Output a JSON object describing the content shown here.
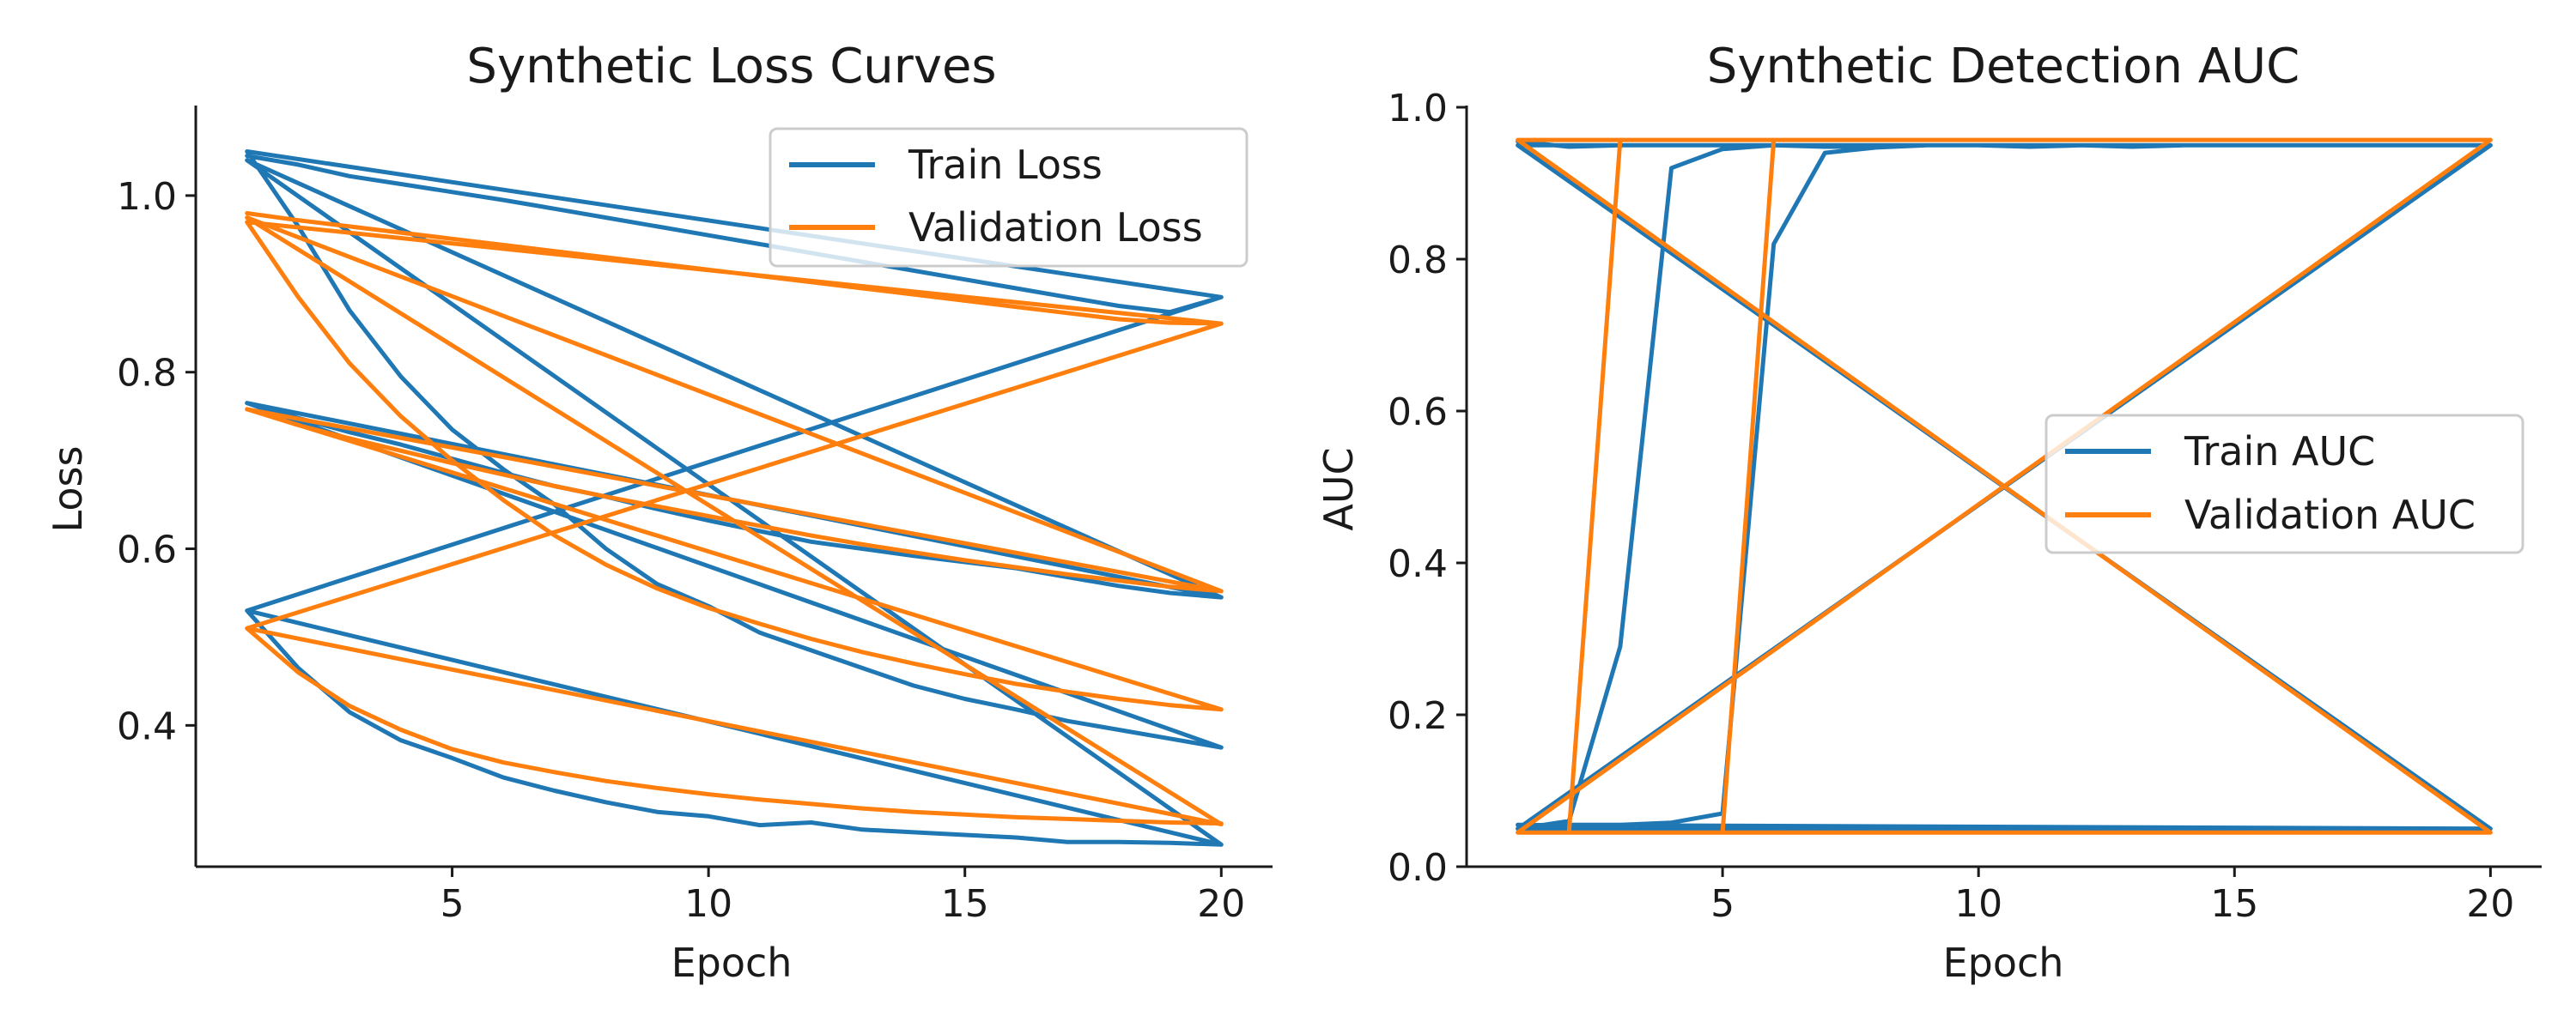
{
  "colors": {
    "train": "#1f77b4",
    "validation": "#ff7f0e",
    "axis": "#1a1a1a"
  },
  "chart_data": [
    {
      "type": "line",
      "title": "Synthetic Loss Curves",
      "xlabel": "Epoch",
      "ylabel": "Loss",
      "xlim": [
        0,
        21
      ],
      "ylim": [
        0.24,
        1.1
      ],
      "xticks": [
        5,
        10,
        15,
        20
      ],
      "yticks": [
        0.4,
        0.6,
        0.8,
        1.0
      ],
      "ytick_labels": [
        "0.4",
        "0.6",
        "0.8",
        "1.0"
      ],
      "grid": false,
      "legend_position": "top-right",
      "legend": [
        "Train Loss",
        "Validation Loss"
      ],
      "series": [
        {
          "name": "Train Loss",
          "color": "#1f77b4",
          "x": [
            1,
            2,
            3,
            4,
            5,
            6,
            7,
            8,
            9,
            10,
            11,
            12,
            13,
            14,
            15,
            16,
            17,
            18,
            19,
            20,
            1,
            20,
            1,
            2,
            3,
            4,
            5,
            6,
            7,
            8,
            9,
            10,
            11,
            12,
            13,
            14,
            15,
            16,
            17,
            18,
            19,
            20,
            1,
            20,
            1,
            2,
            3,
            4,
            5,
            6,
            7,
            8,
            9,
            10,
            11,
            12,
            13,
            14,
            15,
            16,
            17,
            18,
            19,
            20,
            1,
            20,
            1,
            2,
            3,
            4,
            5,
            6,
            7,
            8,
            9,
            10,
            11,
            12,
            13,
            14,
            15,
            16,
            17,
            18,
            19,
            20
          ],
          "y": [
            1.045,
            1.035,
            1.022,
            1.013,
            1.004,
            0.995,
            0.985,
            0.975,
            0.965,
            0.955,
            0.945,
            0.935,
            0.925,
            0.915,
            0.905,
            0.895,
            0.885,
            0.875,
            0.868,
            0.885,
            0.53,
            0.885,
            1.05,
            0.965,
            0.87,
            0.795,
            0.735,
            0.69,
            0.65,
            0.6,
            0.56,
            0.535,
            0.505,
            0.485,
            0.465,
            0.445,
            0.43,
            0.418,
            0.405,
            0.395,
            0.385,
            0.375,
            0.765,
            0.545,
            0.765,
            0.748,
            0.732,
            0.718,
            0.702,
            0.686,
            0.671,
            0.659,
            0.645,
            0.632,
            0.62,
            0.608,
            0.6,
            0.592,
            0.585,
            0.578,
            0.568,
            0.558,
            0.55,
            0.545,
            1.04,
            0.265,
            0.53,
            0.465,
            0.415,
            0.383,
            0.363,
            0.341,
            0.326,
            0.313,
            0.302,
            0.297,
            0.287,
            0.29,
            0.282,
            0.279,
            0.276,
            0.273,
            0.268,
            0.268,
            0.267,
            0.265
          ]
        },
        {
          "name": "Validation Loss",
          "color": "#ff7f0e",
          "x": [
            1,
            2,
            3,
            4,
            5,
            6,
            7,
            8,
            9,
            10,
            11,
            12,
            13,
            14,
            15,
            16,
            17,
            18,
            19,
            20,
            1,
            20,
            1,
            2,
            3,
            4,
            5,
            6,
            7,
            8,
            9,
            10,
            11,
            12,
            13,
            14,
            15,
            16,
            17,
            18,
            19,
            20,
            1,
            20,
            1,
            2,
            3,
            4,
            5,
            6,
            7,
            8,
            9,
            10,
            11,
            12,
            13,
            14,
            15,
            16,
            17,
            18,
            19,
            20,
            1,
            20,
            1,
            2,
            3,
            4,
            5,
            6,
            7,
            8,
            9,
            10,
            11,
            12,
            13,
            14,
            15,
            16,
            17,
            18,
            19,
            20
          ],
          "y": [
            0.98,
            0.972,
            0.965,
            0.958,
            0.951,
            0.944,
            0.937,
            0.93,
            0.923,
            0.916,
            0.909,
            0.902,
            0.895,
            0.888,
            0.881,
            0.874,
            0.867,
            0.86,
            0.856,
            0.855,
            0.51,
            0.855,
            0.97,
            0.885,
            0.81,
            0.75,
            0.7,
            0.655,
            0.615,
            0.582,
            0.555,
            0.533,
            0.515,
            0.498,
            0.483,
            0.47,
            0.458,
            0.447,
            0.438,
            0.43,
            0.423,
            0.418,
            0.758,
            0.552,
            0.758,
            0.74,
            0.725,
            0.711,
            0.697,
            0.684,
            0.671,
            0.659,
            0.648,
            0.637,
            0.626,
            0.615,
            0.605,
            0.596,
            0.587,
            0.579,
            0.571,
            0.564,
            0.557,
            0.552,
            0.975,
            0.288,
            0.51,
            0.46,
            0.422,
            0.395,
            0.373,
            0.358,
            0.347,
            0.337,
            0.329,
            0.322,
            0.316,
            0.311,
            0.306,
            0.302,
            0.299,
            0.296,
            0.294,
            0.292,
            0.29,
            0.289
          ]
        }
      ]
    },
    {
      "type": "line",
      "title": "Synthetic Detection AUC",
      "xlabel": "Epoch",
      "ylabel": "AUC",
      "xlim": [
        0,
        21
      ],
      "ylim": [
        0,
        1.0
      ],
      "xticks": [
        5,
        10,
        15,
        20
      ],
      "yticks": [
        0.0,
        0.2,
        0.4,
        0.6,
        0.8,
        1.0
      ],
      "ytick_labels": [
        "0.0",
        "0.2",
        "0.4",
        "0.6",
        "0.8",
        "1.0"
      ],
      "grid": false,
      "legend_position": "center-right",
      "legend": [
        "Train AUC",
        "Validation AUC"
      ],
      "series": [
        {
          "name": "Train AUC",
          "color": "#1f77b4",
          "x": [
            1,
            2,
            3,
            4,
            5,
            6,
            7,
            8,
            9,
            10,
            11,
            12,
            13,
            14,
            15,
            16,
            17,
            18,
            19,
            20,
            1,
            20,
            1,
            2,
            3,
            4,
            5,
            6,
            7,
            8,
            9,
            10,
            11,
            12,
            13,
            14,
            15,
            16,
            17,
            18,
            19,
            20,
            1,
            20,
            1,
            2,
            3,
            4,
            5,
            6,
            7,
            8,
            9,
            10,
            11,
            12,
            13,
            14,
            15,
            16,
            17,
            18,
            19,
            20,
            1,
            20,
            1,
            2,
            3,
            4,
            5,
            6,
            7,
            8,
            9,
            10,
            11,
            12,
            13,
            14,
            15,
            16,
            17,
            18,
            19,
            20
          ],
          "y": [
            0.955,
            0.948,
            0.95,
            0.95,
            0.95,
            0.95,
            0.948,
            0.948,
            0.95,
            0.95,
            0.948,
            0.95,
            0.948,
            0.95,
            0.95,
            0.95,
            0.95,
            0.95,
            0.95,
            0.95,
            0.05,
            0.95,
            0.05,
            0.06,
            0.29,
            0.92,
            0.945,
            0.95,
            0.95,
            0.95,
            0.95,
            0.95,
            0.95,
            0.95,
            0.95,
            0.95,
            0.95,
            0.95,
            0.95,
            0.95,
            0.95,
            0.95,
            0.95,
            0.05,
            0.05,
            0.055,
            0.055,
            0.058,
            0.07,
            0.82,
            0.94,
            0.947,
            0.95,
            0.95,
            0.95,
            0.95,
            0.95,
            0.95,
            0.95,
            0.95,
            0.95,
            0.95,
            0.95,
            0.95,
            0.95,
            0.05,
            0.055,
            0.05,
            0.05,
            0.05,
            0.05,
            0.05,
            0.05,
            0.052,
            0.05,
            0.05,
            0.05,
            0.05,
            0.05,
            0.05,
            0.05,
            0.05,
            0.05,
            0.05,
            0.05,
            0.05
          ]
        },
        {
          "name": "Validation AUC",
          "color": "#ff7f0e",
          "x": [
            1,
            2,
            3,
            4,
            5,
            6,
            7,
            8,
            9,
            10,
            11,
            12,
            13,
            14,
            15,
            16,
            17,
            18,
            19,
            20,
            1,
            20,
            1,
            2,
            3,
            4,
            5,
            6,
            7,
            8,
            9,
            10,
            11,
            12,
            13,
            14,
            15,
            16,
            17,
            18,
            19,
            20,
            1,
            20,
            1,
            2,
            3,
            4,
            5,
            6,
            7,
            8,
            9,
            10,
            11,
            12,
            13,
            14,
            15,
            16,
            17,
            18,
            19,
            20,
            1,
            20,
            1,
            2,
            3,
            4,
            5,
            6,
            7,
            8,
            9,
            10,
            11,
            12,
            13,
            14,
            15,
            16,
            17,
            18,
            19,
            20
          ],
          "y": [
            0.957,
            0.957,
            0.957,
            0.957,
            0.957,
            0.957,
            0.957,
            0.957,
            0.957,
            0.957,
            0.957,
            0.957,
            0.957,
            0.957,
            0.957,
            0.957,
            0.957,
            0.957,
            0.957,
            0.957,
            0.045,
            0.957,
            0.045,
            0.045,
            0.957,
            0.957,
            0.957,
            0.957,
            0.957,
            0.957,
            0.957,
            0.957,
            0.957,
            0.957,
            0.957,
            0.957,
            0.957,
            0.957,
            0.957,
            0.957,
            0.957,
            0.957,
            0.957,
            0.045,
            0.045,
            0.045,
            0.045,
            0.045,
            0.045,
            0.957,
            0.957,
            0.957,
            0.957,
            0.957,
            0.957,
            0.957,
            0.957,
            0.957,
            0.957,
            0.957,
            0.957,
            0.957,
            0.957,
            0.957,
            0.957,
            0.045,
            0.045,
            0.045,
            0.045,
            0.045,
            0.045,
            0.045,
            0.045,
            0.045,
            0.045,
            0.045,
            0.045,
            0.045,
            0.045,
            0.045,
            0.045,
            0.045,
            0.045,
            0.045,
            0.045,
            0.045
          ]
        }
      ]
    }
  ]
}
